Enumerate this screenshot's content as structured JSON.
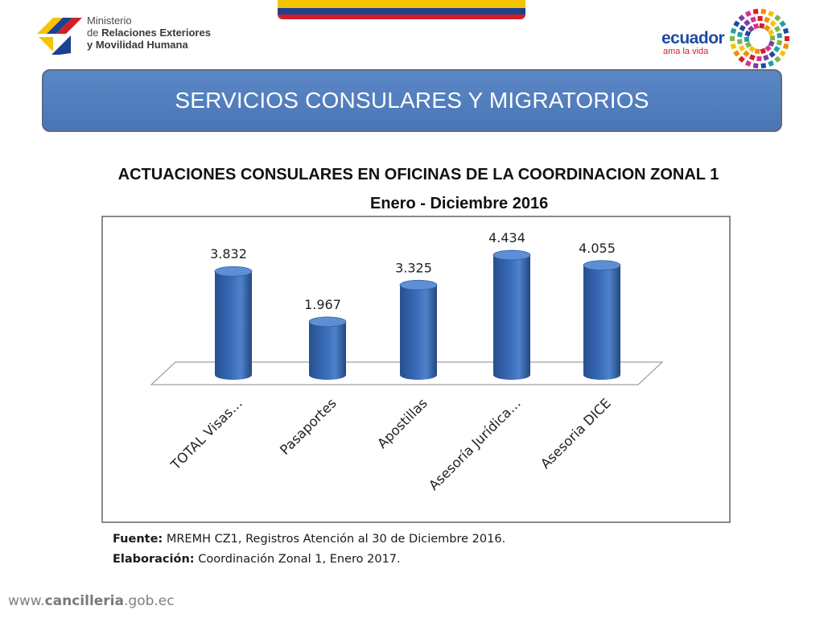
{
  "header": {
    "logo_left": {
      "line1": "Ministerio",
      "line2_prefix": "de ",
      "line2_bold": "Relaciones Exteriores",
      "line3_bold": "y Movilidad Humana"
    },
    "logo_right": {
      "word": "ecuador",
      "tagline": "ama la vida"
    }
  },
  "banner": {
    "title": "SERVICIOS CONSULARES Y MIGRATORIOS"
  },
  "chart_data": {
    "type": "bar",
    "title": "ACTUACIONES CONSULARES EN OFICINAS DE LA COORDINACION ZONAL 1",
    "subtitle": "Enero - Diciembre 2016",
    "categories": [
      "TOTAL Visas…",
      "Pasaportes",
      "Apostillas",
      "Asesoría Jurídica…",
      "Asesoria DICE"
    ],
    "values": [
      3832,
      1967,
      3325,
      4434,
      4055
    ],
    "value_labels": [
      "3.832",
      "1.967",
      "3.325",
      "4.434",
      "4.055"
    ],
    "ylim": [
      0,
      5000
    ],
    "grid": false,
    "bar_color": "#3a6cb8",
    "legend": "none"
  },
  "source": {
    "fuente_label": "Fuente:",
    "fuente_text": " MREMH CZ1, Registros Atención al 30 de Diciembre 2016.",
    "elaboracion_label": "Elaboración:",
    "elaboracion_text": " Coordinación Zonal 1, Enero 2017."
  },
  "footer": {
    "url_prefix": "www.",
    "url_bold": "cancilleria",
    "url_suffix": ".gob.ec"
  }
}
